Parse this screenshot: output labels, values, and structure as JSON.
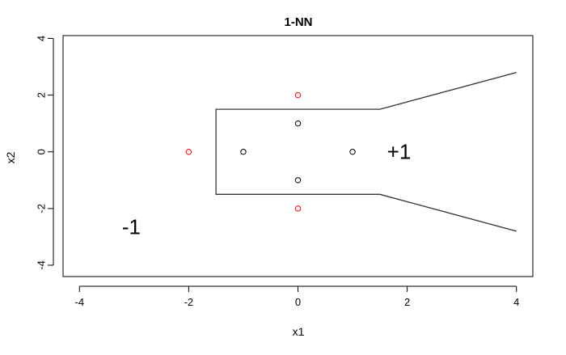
{
  "chart_data": {
    "type": "scatter",
    "title": "1-NN",
    "xlabel": "x1",
    "ylabel": "x2",
    "xlim": [
      -4.3,
      4.3
    ],
    "ylim": [
      -4.4,
      4.1
    ],
    "xticks": [
      -4,
      -2,
      0,
      2,
      4
    ],
    "yticks": [
      -4,
      -2,
      0,
      2,
      4
    ],
    "tick_labels_x": [
      "-4",
      "-2",
      "0",
      "2",
      "4"
    ],
    "tick_labels_y": [
      "-4",
      "-2",
      "0",
      "2",
      "4"
    ],
    "grid": false,
    "colors": {
      "positive": "#000000",
      "negative": "#ff0000",
      "boundary": "#333333"
    },
    "series": [
      {
        "class": "positive",
        "points": [
          {
            "x": -1,
            "y": 0
          },
          {
            "x": 0,
            "y": 1
          },
          {
            "x": 0,
            "y": -1
          },
          {
            "x": 1,
            "y": 0
          }
        ]
      },
      {
        "class": "negative",
        "points": [
          {
            "x": -2,
            "y": 0
          },
          {
            "x": 0,
            "y": 2
          },
          {
            "x": 0,
            "y": -2
          }
        ]
      }
    ],
    "decision_boundary": [
      {
        "x": 4.0,
        "y": 2.8
      },
      {
        "x": 1.5,
        "y": 1.5
      },
      {
        "x": -1.5,
        "y": 1.5
      },
      {
        "x": -1.5,
        "y": -1.5
      },
      {
        "x": 1.5,
        "y": -1.5
      },
      {
        "x": 4.0,
        "y": -2.8
      }
    ],
    "annotations": [
      {
        "text": "+1",
        "x": 1.85,
        "y": 0
      },
      {
        "text": "-1",
        "x": -3.05,
        "y": -2.65
      }
    ]
  }
}
